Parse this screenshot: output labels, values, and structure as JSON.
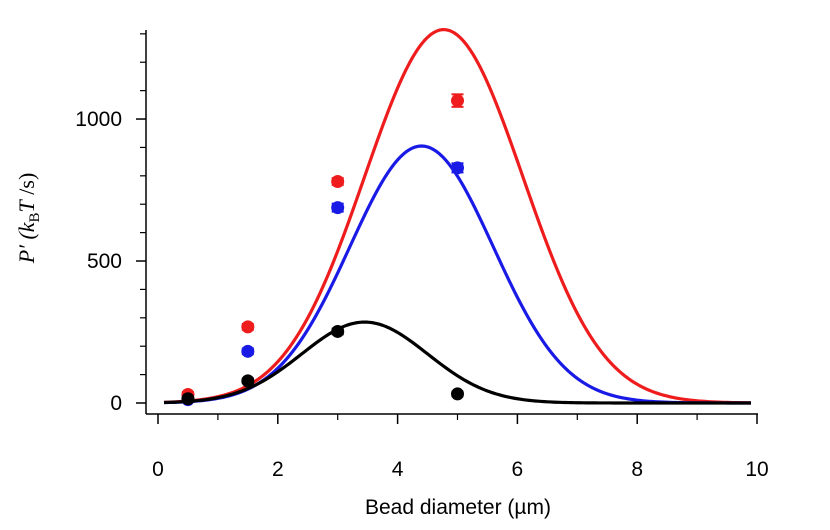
{
  "chart_data": {
    "type": "scatter",
    "xlabel": "Bead diameter (µm)",
    "ylabel": {
      "main": "P′ (",
      "k": "k",
      "sub": "B",
      "T": "T",
      "tail": " /s)"
    },
    "xlim": [
      0,
      10
    ],
    "ylim": [
      0,
      1300
    ],
    "x_ticks": [
      "0",
      "2",
      "4",
      "6",
      "8",
      "10"
    ],
    "y_ticks": [
      "0",
      "500",
      "1000"
    ],
    "grid": false,
    "series": [
      {
        "color": "#ee1c1c",
        "points": [
          {
            "x": 0.5,
            "y": 30,
            "err": 8
          },
          {
            "x": 1.5,
            "y": 268,
            "err": 10
          },
          {
            "x": 3.0,
            "y": 780,
            "err": 12
          },
          {
            "x": 5.0,
            "y": 1065,
            "err": 22
          }
        ],
        "fit": {
          "amp": 1315,
          "center": 4.77,
          "sigma": 1.32
        }
      },
      {
        "color": "#1a1ae6",
        "points": [
          {
            "x": 0.5,
            "y": 12,
            "err": 8
          },
          {
            "x": 1.5,
            "y": 182,
            "err": 10
          },
          {
            "x": 3.0,
            "y": 688,
            "err": 14
          },
          {
            "x": 5.0,
            "y": 828,
            "err": 16
          }
        ],
        "fit": {
          "amp": 905,
          "center": 4.4,
          "sigma": 1.2
        }
      },
      {
        "color": "#000000",
        "points": [
          {
            "x": 0.5,
            "y": 15,
            "err": 8
          },
          {
            "x": 1.5,
            "y": 78,
            "err": 8
          },
          {
            "x": 3.0,
            "y": 252,
            "err": 10
          },
          {
            "x": 5.0,
            "y": 32,
            "err": 8
          }
        ],
        "fit": {
          "amp": 285,
          "center": 3.45,
          "sigma": 1.05
        }
      }
    ]
  }
}
